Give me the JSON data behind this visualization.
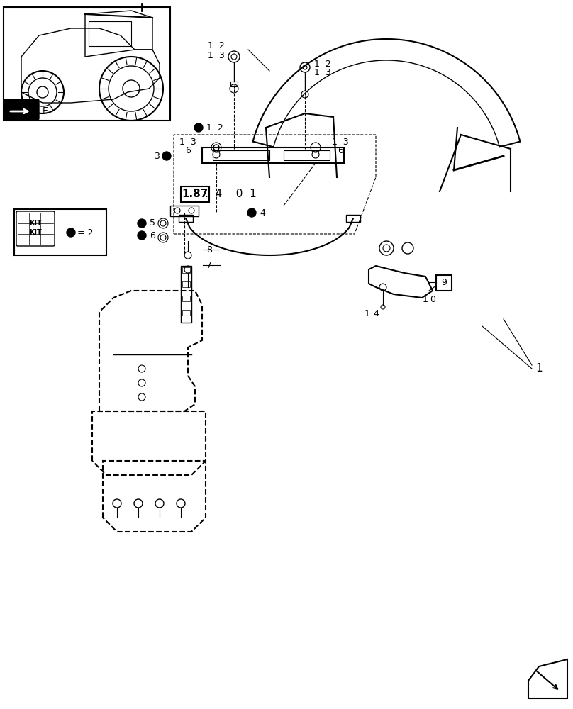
{
  "bg_color": "#ffffff",
  "line_color": "#000000",
  "light_gray": "#cccccc",
  "dark_gray": "#555555",
  "title": "1.87.4 01",
  "label_numbers": {
    "part1": "1",
    "part2": "2",
    "part3": "3",
    "part4": "4",
    "part5": "5",
    "part6": "6",
    "part7": "7",
    "part8": "8",
    "part9": "9",
    "part10": "10"
  }
}
